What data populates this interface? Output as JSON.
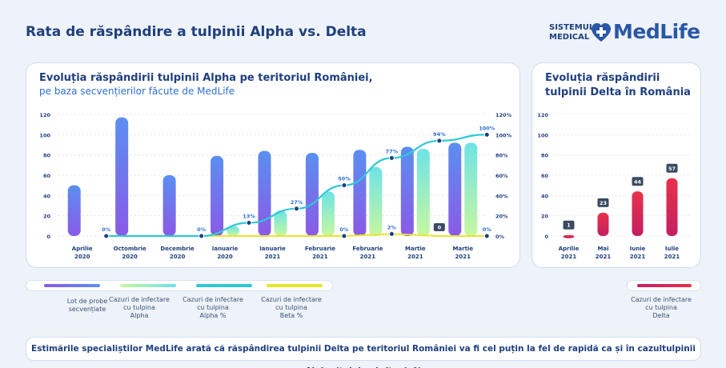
{
  "header": {
    "title": "Rata de răspândire a tulpinii Alpha vs. Delta"
  },
  "logo": {
    "line1": "SISTEMUL",
    "line2": "MEDICAL",
    "brand": "MedLife"
  },
  "colors": {
    "probe": "#7b5de8",
    "alpha": "#7ef0c8",
    "alpha_pct": "#2ec9d6",
    "beta_pct": "#e8e52a",
    "delta": "#e0314e"
  },
  "chart_data": [
    {
      "type": "bar",
      "title": "Evoluția răspândirii tulpinii Alpha pe teritoriul României,",
      "subtitle": "pe baza secvențierilor făcute de MedLife",
      "categories": [
        "Aprilie 2020",
        "Octombrie 2020",
        "Decembrie 2020",
        "Ianuarie 2020",
        "Ianuarie 2021",
        "Februarie 2021",
        "Februarie 2021",
        "Martie 2021",
        "Martie 2021"
      ],
      "ylim": [
        0,
        120
      ],
      "y_ticks": [
        "0",
        "20",
        "40",
        "60",
        "80",
        "100",
        "120"
      ],
      "y2lim": [
        0,
        120
      ],
      "y2_ticks": [
        "0%",
        "20%",
        "40%",
        "60%",
        "80%",
        "100%",
        "120%"
      ],
      "series": [
        {
          "name": "Lot de probe secvențiate",
          "type": "bar",
          "values": [
            50,
            117,
            60,
            79,
            84,
            82,
            85,
            88,
            92
          ]
        },
        {
          "name": "Cazuri de infectare cu tulpina Alpha",
          "type": "bar",
          "values": [
            0,
            0,
            0,
            10,
            25,
            44,
            68,
            86,
            92
          ]
        },
        {
          "name": "Cazuri de infectare cu tulpina Alpha %",
          "type": "line",
          "values": [
            0,
            0,
            0,
            13,
            27,
            50,
            77,
            94,
            100
          ],
          "labels": [
            "0%",
            "",
            "0%",
            "13%",
            "27%",
            "50%",
            "77%",
            "94%",
            "100%"
          ]
        },
        {
          "name": "Cazuri de infectare cu tulpina Beta %",
          "type": "line",
          "values": [
            0,
            0,
            0,
            0,
            0,
            0,
            2,
            0,
            0
          ],
          "labels": [
            "",
            "",
            "",
            "",
            "",
            "0%",
            "2%",
            "0",
            "0%"
          ]
        }
      ]
    },
    {
      "type": "bar",
      "title": "Evoluția răspândirii tulpinii Delta în România",
      "categories": [
        "Aprilie 2021",
        "Mai 2021",
        "Iunie 2021",
        "Iulie 2021"
      ],
      "ylim": [
        0,
        120
      ],
      "y_ticks": [
        "0",
        "20",
        "40",
        "60",
        "80",
        "100",
        "120"
      ],
      "series": [
        {
          "name": "Cazuri de infectare cu tulpina Delta",
          "values": [
            1,
            23,
            44,
            57
          ],
          "labels": [
            "1",
            "23",
            "44",
            "57"
          ]
        }
      ]
    }
  ],
  "legend_alpha": [
    {
      "line1": "Lot de probe",
      "line2": "secvențiate",
      "line3": ""
    },
    {
      "line1": "Cazuri de infectare",
      "line2": "cu tulpina",
      "line3": "Alpha"
    },
    {
      "line1": "Cazuri de infectare",
      "line2": "cu tulpina",
      "line3": "Alpha %"
    },
    {
      "line1": "Cazuri de infectare",
      "line2": "cu tulpina",
      "line3": "Beta %"
    }
  ],
  "legend_delta": {
    "line1": "Cazuri de infectare",
    "line2": "cu tulpina",
    "line3": "Delta"
  },
  "footer": {
    "text": "Estimările specialiștilor MedLife arată că răspândirea tulpinii Delta pe teritoriul României va fi cel puțin la fel de rapidă ca și în cazultulpinii Alpha (tulpina britanică)"
  }
}
